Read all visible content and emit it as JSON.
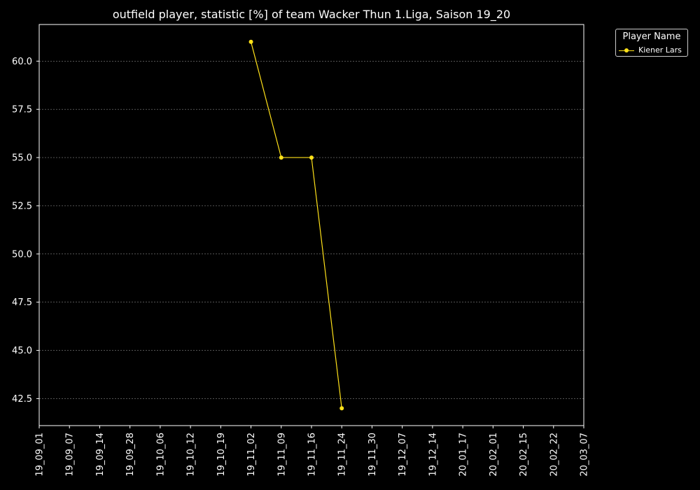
{
  "chart_data": {
    "type": "line",
    "title": "outfield player, statistic [%] of team Wacker Thun 1.Liga, Saison 19_20",
    "xlabel": "",
    "ylabel": "",
    "categories": [
      "19_09_01",
      "19_09_07",
      "19_09_14",
      "19_09_28",
      "19_10_06",
      "19_10_12",
      "19_10_19",
      "19_11_02",
      "19_11_09",
      "19_11_16",
      "19_11_24",
      "19_11_30",
      "19_12_07",
      "19_12_14",
      "20_01_17",
      "20_02_01",
      "20_02_15",
      "20_02_22",
      "20_03_07"
    ],
    "yticks": [
      "42.5",
      "45.0",
      "47.5",
      "50.0",
      "52.5",
      "55.0",
      "57.5",
      "60.0"
    ],
    "ylim": [
      41.1,
      61.9
    ],
    "grid": true,
    "legend": {
      "title": "Player Name",
      "placement": "upper right, outside plot"
    },
    "series": [
      {
        "name": "Kiener Lars",
        "color": "#ffe119",
        "points": [
          {
            "x": "19_11_02",
            "y": 61
          },
          {
            "x": "19_11_09",
            "y": 55
          },
          {
            "x": "19_11_16",
            "y": 55
          },
          {
            "x": "19_11_24",
            "y": 42
          }
        ]
      }
    ]
  }
}
